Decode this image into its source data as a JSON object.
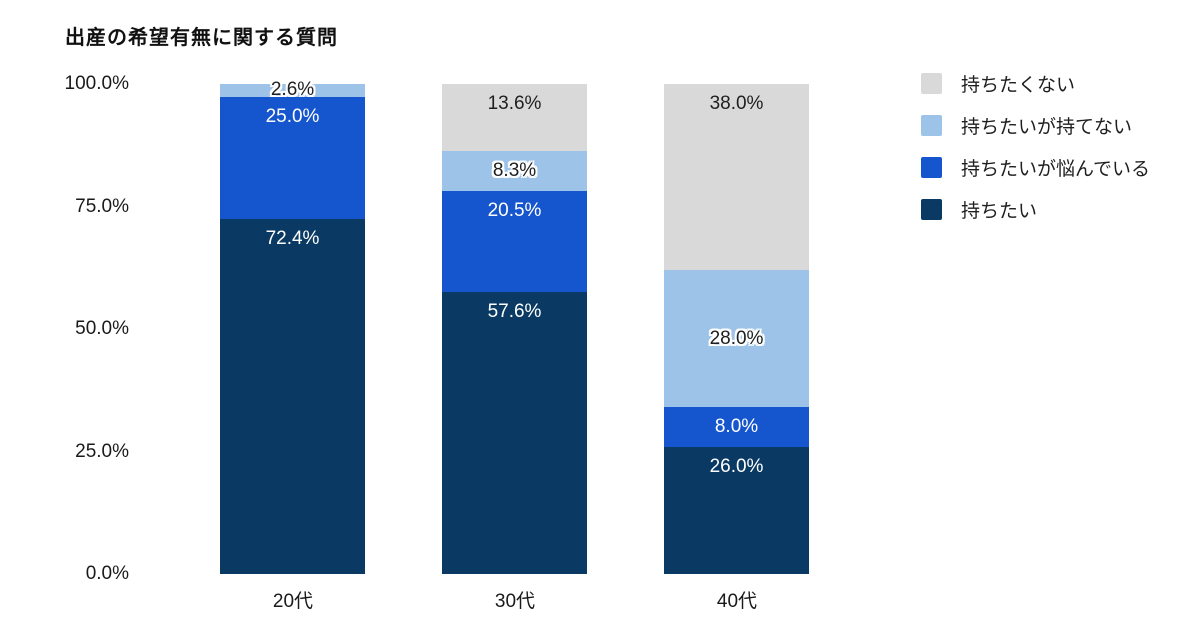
{
  "chart_data": {
    "type": "bar",
    "stacked": true,
    "percent": true,
    "title": "出産の希望有無に関する質問",
    "categories": [
      "20代",
      "30代",
      "40代"
    ],
    "series": [
      {
        "name": "持ちたい",
        "color": "#0a3a63",
        "label_color": "#ffffff",
        "label_anchor": "top",
        "label_outline": false,
        "values": [
          72.4,
          57.6,
          26.0
        ]
      },
      {
        "name": "持ちたいが悩んでいる",
        "color": "#1555cd",
        "label_color": "#ffffff",
        "label_anchor": "top",
        "label_outline": false,
        "values": [
          25.0,
          20.5,
          8.0
        ]
      },
      {
        "name": "持ちたいが持てない",
        "color": "#9dc3e9",
        "label_color": "#1f1f1f",
        "label_anchor": "center",
        "label_outline": true,
        "values": [
          2.6,
          8.3,
          28.0
        ]
      },
      {
        "name": "持ちたくない",
        "color": "#d9d9d9",
        "label_color": "#1f1f1f",
        "label_anchor": "top",
        "label_outline": false,
        "values": [
          0,
          13.6,
          38.0
        ]
      }
    ],
    "value_label_suffix": "%",
    "y_axis": {
      "min": 0,
      "max": 100,
      "ticks": [
        "100.0%",
        "75.0%",
        "50.0%",
        "25.0%",
        "0.0%"
      ],
      "gridlines": false
    },
    "legend": {
      "position": "right",
      "order": "top-of-stack-first"
    }
  }
}
